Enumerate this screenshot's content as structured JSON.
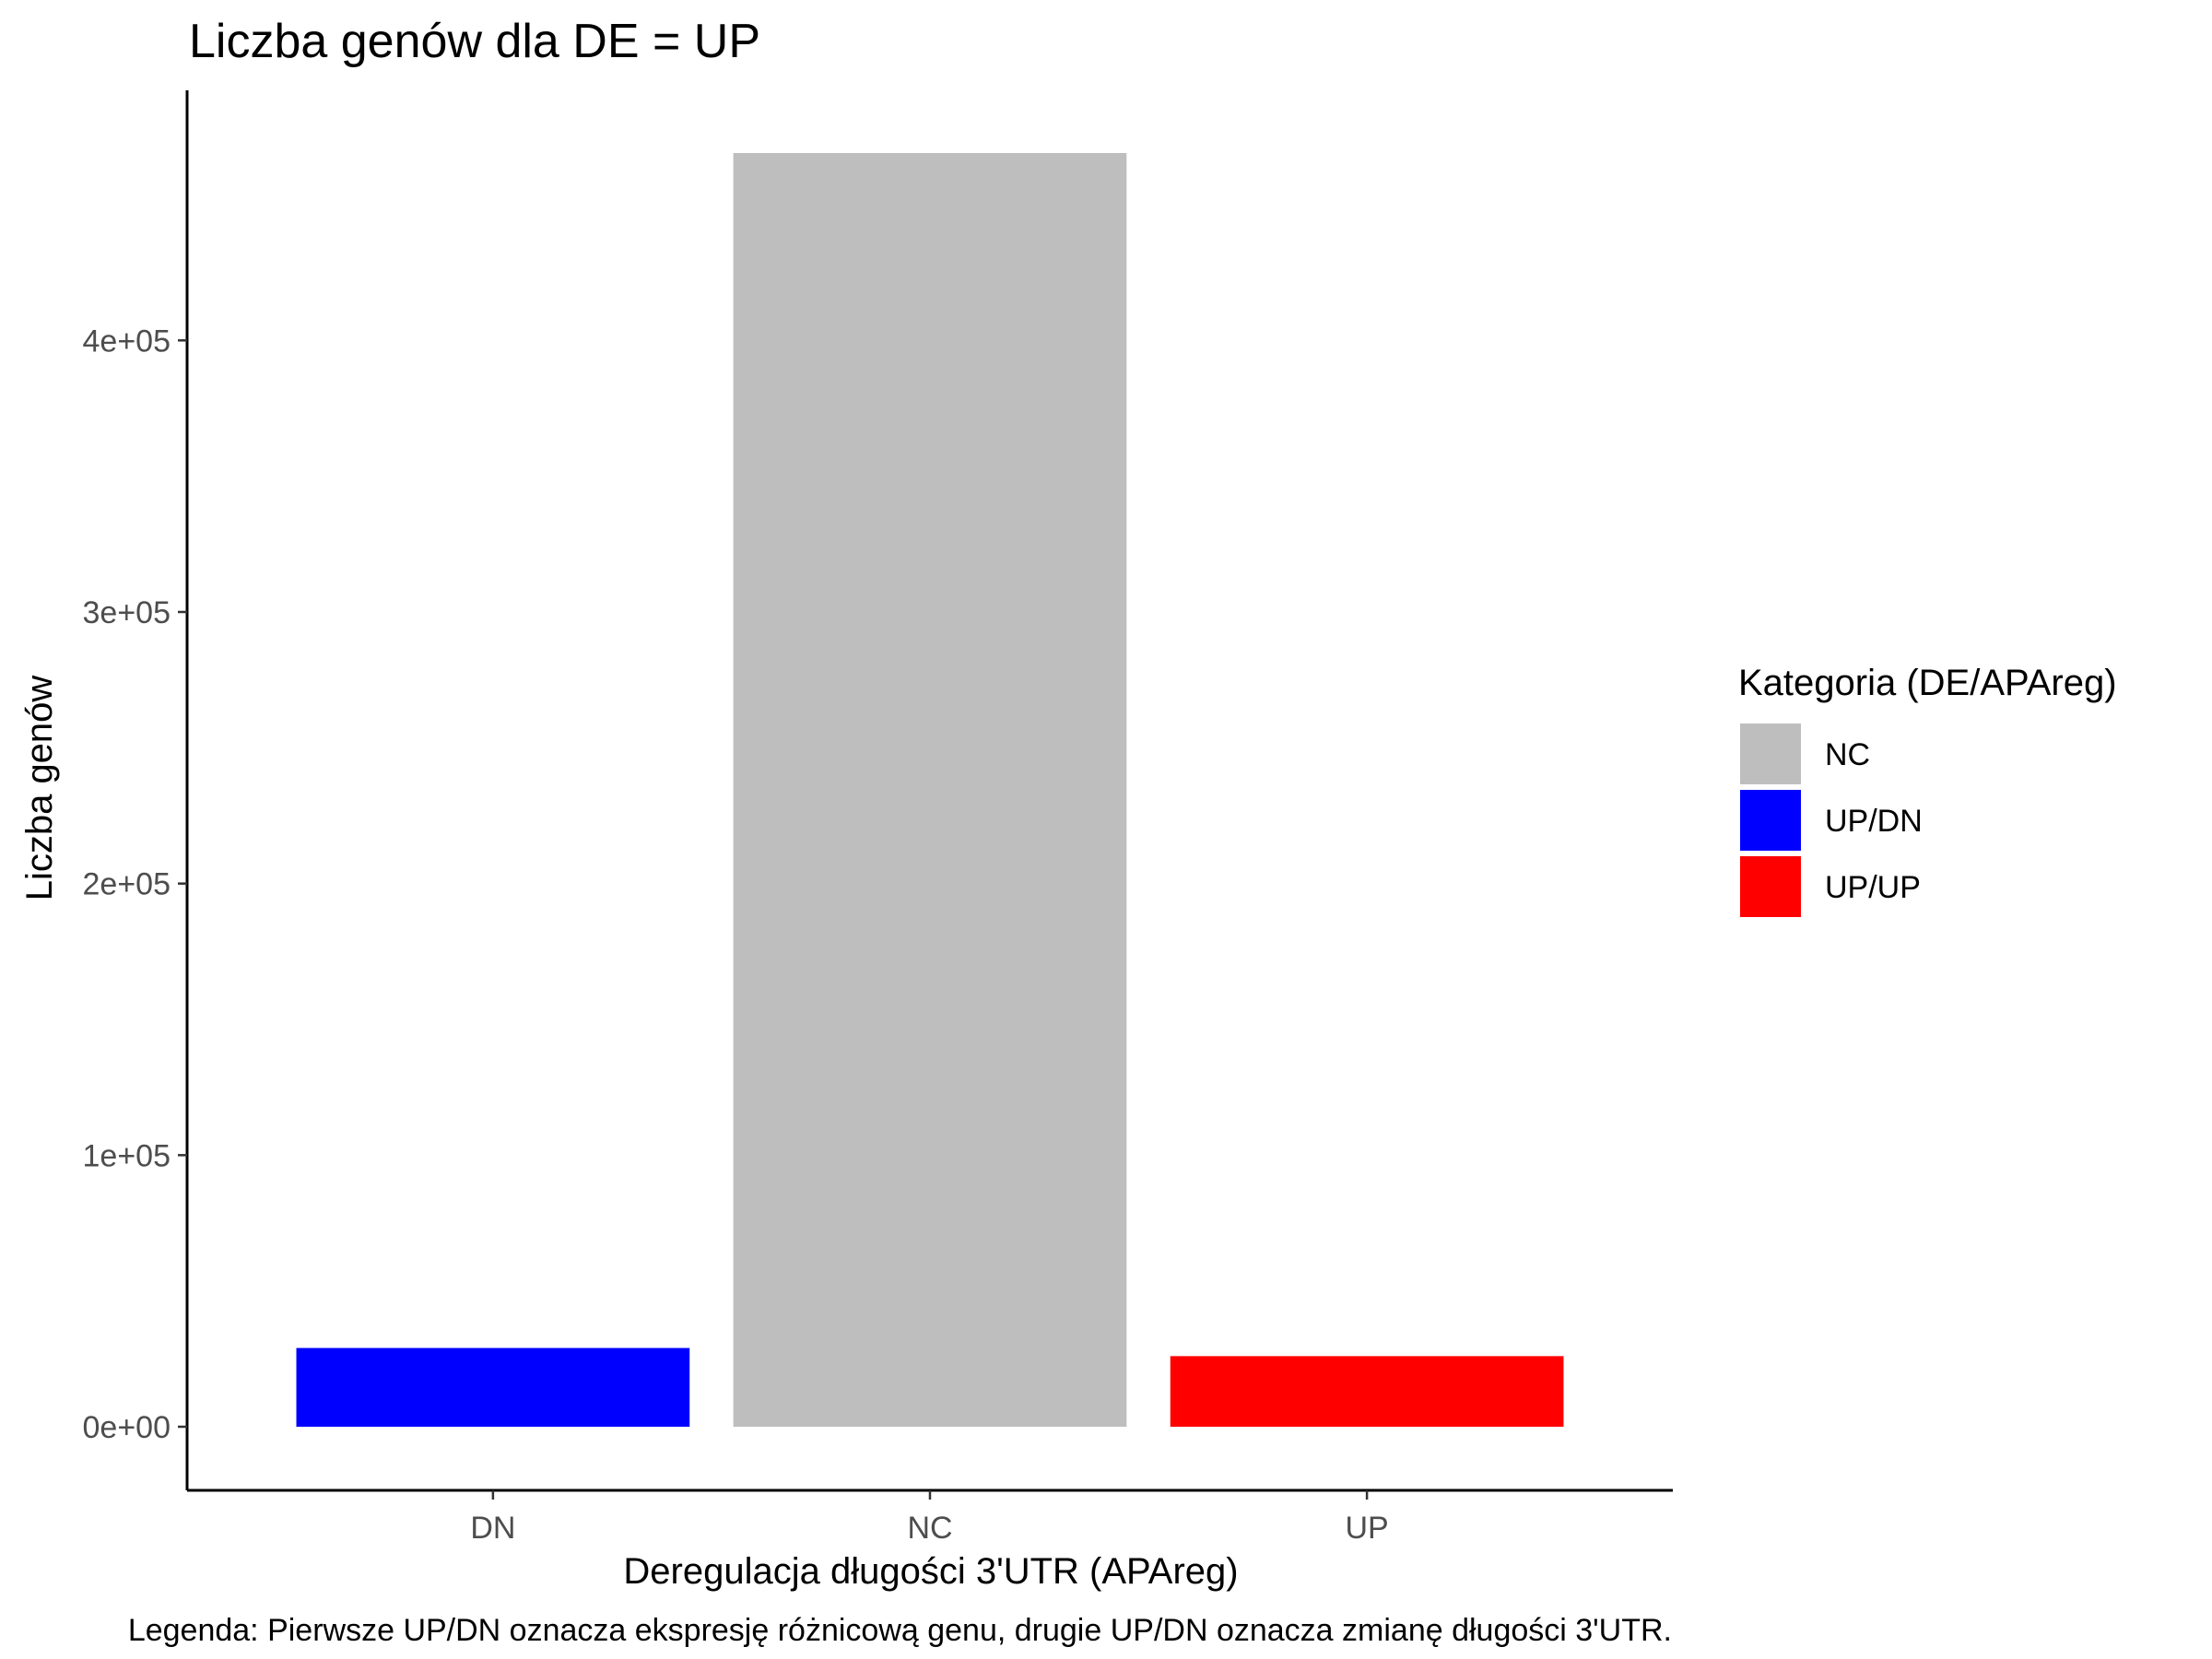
{
  "chart_data": {
    "type": "bar",
    "title": "Liczba genów dla DE = UP",
    "xlabel": "Deregulacja długości 3'UTR (APAreg)",
    "ylabel": "Liczba genów",
    "categories": [
      "DN",
      "NC",
      "UP"
    ],
    "values": [
      29000,
      469000,
      26000
    ],
    "bar_categories": [
      "UP/DN",
      "NC",
      "UP/UP"
    ],
    "ylim": [
      0,
      469000
    ],
    "y_ticks": [
      0,
      100000,
      200000,
      300000,
      400000
    ],
    "y_tick_labels": [
      "0e+00",
      "1e+05",
      "2e+05",
      "3e+05",
      "4e+05"
    ],
    "grid": false,
    "legend": {
      "title": "Kategoria (DE/APAreg)",
      "position": "right",
      "items": [
        {
          "label": "NC",
          "color": "#bebebe"
        },
        {
          "label": "UP/DN",
          "color": "#0000ff"
        },
        {
          "label": "UP/UP",
          "color": "#ff0000"
        }
      ]
    },
    "caption": "Legenda: Pierwsze UP/DN oznacza ekspresję różnicową genu, drugie UP/DN oznacza zmianę długości 3'UTR."
  }
}
